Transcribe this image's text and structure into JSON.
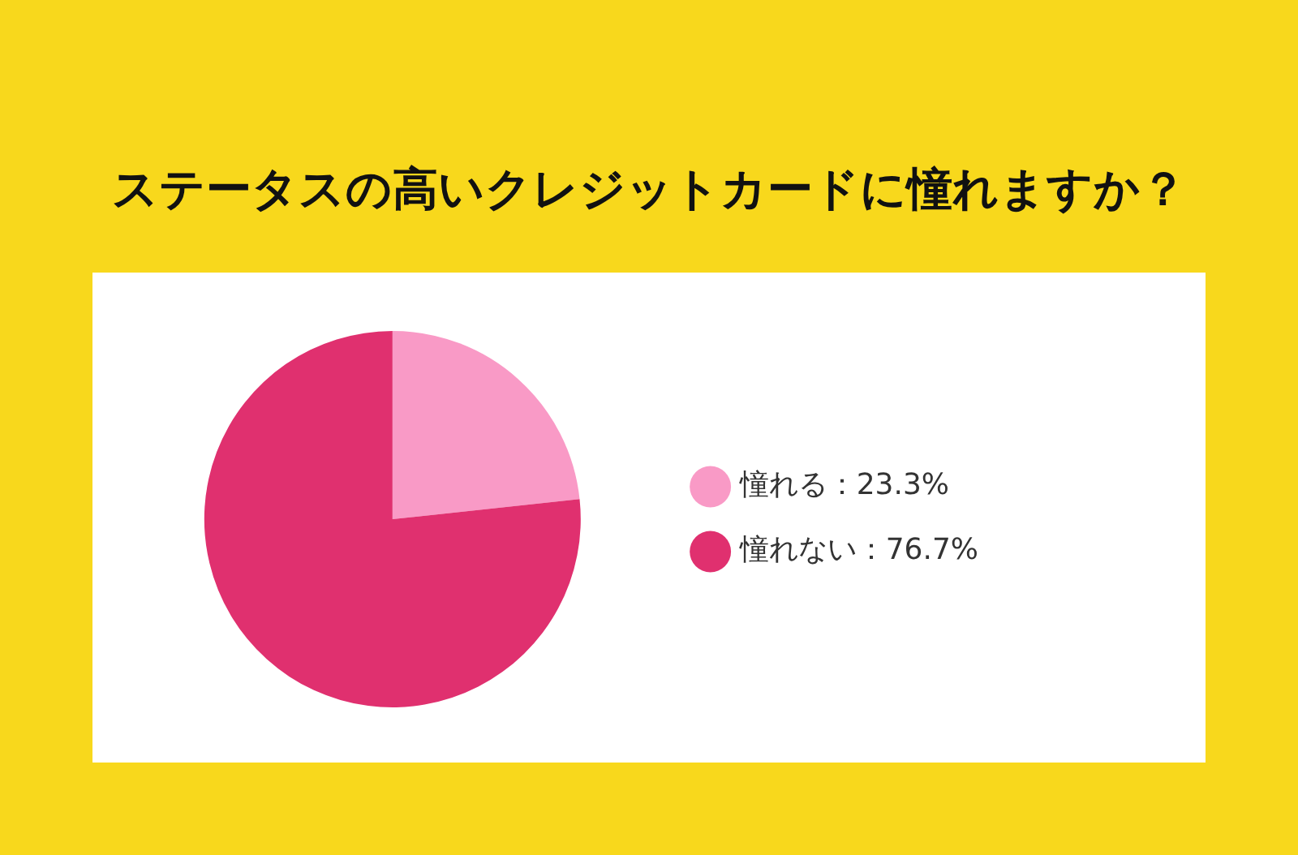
{
  "chart_data": {
    "type": "pie",
    "title": "ステータスの高いクレジットカードに憧れますか？",
    "categories": [
      "憧れる：23.3%",
      "憧れない：76.7%"
    ],
    "values": [
      23.3,
      76.7
    ],
    "colors": [
      "#f99ac6",
      "#e0306f"
    ],
    "legend": "right"
  }
}
